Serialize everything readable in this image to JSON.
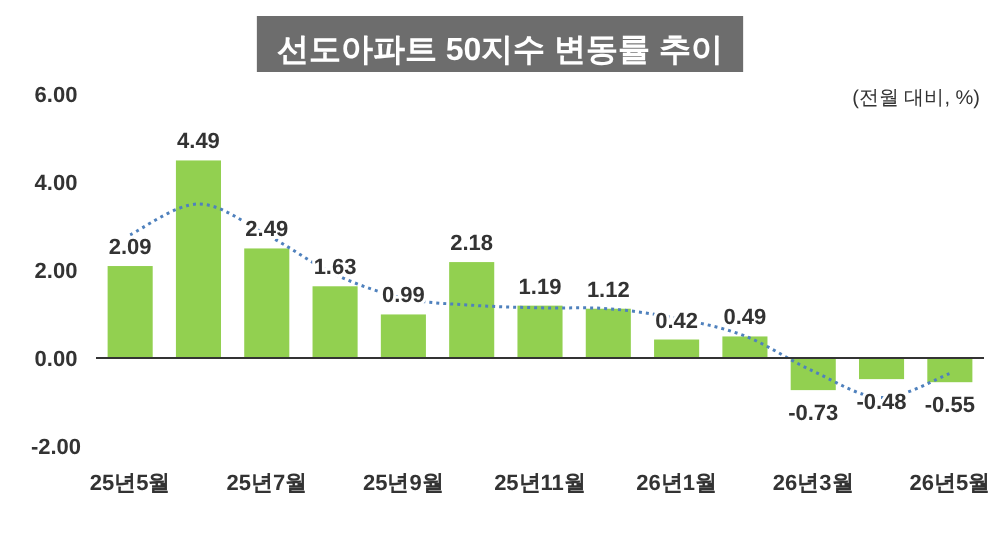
{
  "chart_data": {
    "type": "bar",
    "title": "선도아파트 50지수 변동률 추이",
    "annotations": [
      "(전월 대비, %)"
    ],
    "categories": [
      "25년5월",
      null,
      "25년7월",
      null,
      "25년9월",
      null,
      "25년11월",
      null,
      "26년1월",
      null,
      "26년3월",
      null,
      "26년5월"
    ],
    "ylim": [
      -2,
      6
    ],
    "yticks": [
      {
        "value": -2,
        "label": "-2.00"
      },
      {
        "value": 0,
        "label": "0.00"
      },
      {
        "value": 2,
        "label": "2.00"
      },
      {
        "value": 4,
        "label": "4.00"
      },
      {
        "value": 6,
        "label": "6.00"
      }
    ],
    "series": [
      {
        "color": "#92d050",
        "values": [
          2.09,
          4.49,
          2.49,
          1.63,
          0.99,
          2.18,
          1.19,
          1.12,
          0.42,
          0.49,
          -0.73,
          -0.48,
          -0.55
        ],
        "value_labels": [
          "2.09",
          "4.49",
          "2.49",
          "1.63",
          "0.99",
          "2.18",
          "1.19",
          "1.12",
          "0.42",
          "0.49",
          "-0.73",
          "-0.48",
          "-0.55"
        ]
      },
      {
        "type": "line",
        "color": "#4f81bd",
        "line_style": "dotted",
        "marker": "none",
        "values": [
          2.8,
          3.5,
          2.8,
          1.9,
          1.36,
          1.2,
          1.14,
          1.12,
          0.9,
          0.5,
          -0.3,
          -0.9,
          -0.35
        ]
      }
    ]
  }
}
